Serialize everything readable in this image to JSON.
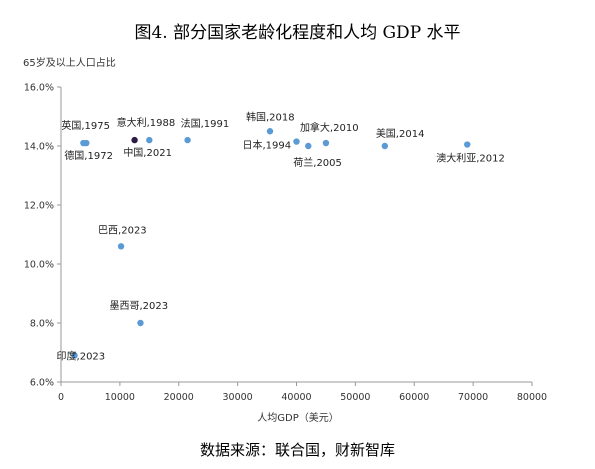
{
  "page_title": "图4. 部分国家老龄化程度和人均 GDP 水平",
  "source_note": "数据来源：联合国，财新智库",
  "chart_data": {
    "type": "scatter",
    "ylabel": "65岁及以上人口占比",
    "xlabel": "人均GDP（美元）",
    "xlim": [
      0,
      80000
    ],
    "ylim": [
      6,
      16
    ],
    "x_ticks": [
      0,
      10000,
      20000,
      30000,
      40000,
      50000,
      60000,
      70000,
      80000
    ],
    "x_tick_labels": [
      "0",
      "10000",
      "20000",
      "30000",
      "40000",
      "50000",
      "60000",
      "70000",
      "80000"
    ],
    "y_ticks": [
      6,
      8,
      10,
      12,
      14,
      16
    ],
    "y_tick_labels": [
      "6.0%",
      "8.0%",
      "10.0%",
      "12.0%",
      "14.0%",
      "16.0%"
    ],
    "grid": false,
    "colors": {
      "default": "#5b9bd5",
      "highlight": "#2e1a47"
    },
    "points": [
      {
        "label": "英国,1975",
        "x": 3800,
        "y": 14.1
      },
      {
        "label": "德国,1972",
        "x": 4300,
        "y": 14.1
      },
      {
        "label": "意大利,1988",
        "x": 12500,
        "y": 14.2,
        "highlight": true
      },
      {
        "label": "中国,2021",
        "x": 15000,
        "y": 14.2
      },
      {
        "label": "法国,1991",
        "x": 21500,
        "y": 14.2
      },
      {
        "label": "韩国,2018",
        "x": 35500,
        "y": 14.5
      },
      {
        "label": "日本,1994",
        "x": 40000,
        "y": 14.15
      },
      {
        "label": "荷兰,2005",
        "x": 42000,
        "y": 14.0
      },
      {
        "label": "加拿大,2010",
        "x": 45000,
        "y": 14.1
      },
      {
        "label": "美国,2014",
        "x": 55000,
        "y": 14.0
      },
      {
        "label": "澳大利亚,2012",
        "x": 69000,
        "y": 14.05
      },
      {
        "label": "巴西,2023",
        "x": 10200,
        "y": 10.6
      },
      {
        "label": "墨西哥,2023",
        "x": 13500,
        "y": 8.0
      },
      {
        "label": "印度,2023",
        "x": 2300,
        "y": 6.9
      }
    ]
  }
}
